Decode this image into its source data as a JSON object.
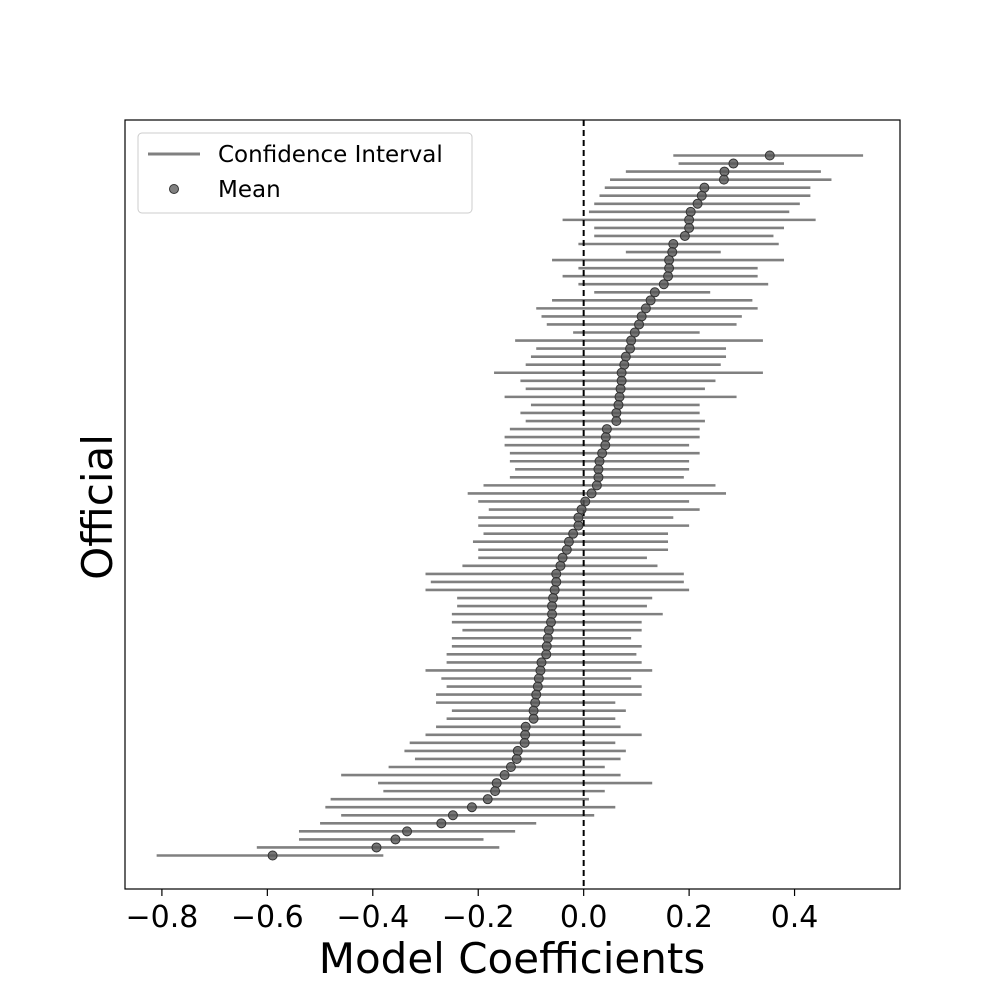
{
  "chart_data": {
    "type": "scatter",
    "xlabel": "Model Coefficients",
    "ylabel": "Official",
    "xlim": [
      -0.87,
      0.6
    ],
    "x_ticks": [
      -0.8,
      -0.6,
      -0.4,
      -0.2,
      0.0,
      0.2,
      0.4
    ],
    "x_tick_labels": [
      "−0.8",
      "−0.6",
      "−0.4",
      "−0.2",
      "0.0",
      "0.2",
      "0.4"
    ],
    "reference_line_x": 0.0,
    "legend": {
      "placement": "top-left",
      "entries": [
        "Confidence Interval",
        "Mean"
      ]
    },
    "colors": {
      "interval": "#808080",
      "mean": "#555555",
      "reference": "#000000"
    },
    "series": [
      {
        "name": "Mean",
        "values": [
          0.353,
          0.284,
          0.267,
          0.266,
          0.229,
          0.224,
          0.216,
          0.203,
          0.2,
          0.2,
          0.192,
          0.17,
          0.168,
          0.162,
          0.162,
          0.16,
          0.152,
          0.135,
          0.127,
          0.118,
          0.11,
          0.105,
          0.097,
          0.09,
          0.088,
          0.08,
          0.077,
          0.072,
          0.072,
          0.07,
          0.068,
          0.066,
          0.062,
          0.062,
          0.044,
          0.042,
          0.041,
          0.035,
          0.03,
          0.028,
          0.028,
          0.025,
          0.015,
          0.003,
          -0.004,
          -0.01,
          -0.01,
          -0.02,
          -0.028,
          -0.032,
          -0.04,
          -0.044,
          -0.052,
          -0.052,
          -0.055,
          -0.058,
          -0.06,
          -0.06,
          -0.062,
          -0.066,
          -0.068,
          -0.07,
          -0.071,
          -0.08,
          -0.082,
          -0.085,
          -0.087,
          -0.09,
          -0.092,
          -0.095,
          -0.095,
          -0.11,
          -0.111,
          -0.112,
          -0.125,
          -0.127,
          -0.138,
          -0.15,
          -0.165,
          -0.168,
          -0.182,
          -0.212,
          -0.248,
          -0.27,
          -0.335,
          -0.357,
          -0.393,
          -0.59
        ],
        "ci_low": [
          0.17,
          0.18,
          0.08,
          0.05,
          0.04,
          0.03,
          0.02,
          0.01,
          -0.04,
          0.02,
          0.02,
          -0.01,
          0.08,
          -0.06,
          -0.01,
          -0.04,
          -0.01,
          0.02,
          -0.06,
          -0.09,
          -0.08,
          -0.07,
          -0.02,
          -0.13,
          -0.09,
          -0.1,
          -0.11,
          -0.17,
          -0.12,
          -0.11,
          -0.15,
          -0.1,
          -0.12,
          -0.11,
          -0.14,
          -0.15,
          -0.15,
          -0.14,
          -0.14,
          -0.13,
          -0.14,
          -0.19,
          -0.22,
          -0.2,
          -0.18,
          -0.2,
          -0.2,
          -0.19,
          -0.21,
          -0.2,
          -0.2,
          -0.23,
          -0.3,
          -0.29,
          -0.3,
          -0.24,
          -0.24,
          -0.25,
          -0.25,
          -0.23,
          -0.25,
          -0.25,
          -0.26,
          -0.26,
          -0.3,
          -0.27,
          -0.26,
          -0.28,
          -0.28,
          -0.25,
          -0.26,
          -0.28,
          -0.3,
          -0.33,
          -0.34,
          -0.32,
          -0.37,
          -0.46,
          -0.39,
          -0.38,
          -0.48,
          -0.49,
          -0.46,
          -0.5,
          -0.54,
          -0.54,
          -0.62,
          -0.81
        ],
        "ci_high": [
          0.53,
          0.38,
          0.45,
          0.47,
          0.43,
          0.43,
          0.41,
          0.39,
          0.44,
          0.38,
          0.36,
          0.37,
          0.26,
          0.38,
          0.33,
          0.33,
          0.35,
          0.24,
          0.32,
          0.33,
          0.3,
          0.29,
          0.22,
          0.34,
          0.27,
          0.27,
          0.26,
          0.34,
          0.25,
          0.23,
          0.29,
          0.22,
          0.22,
          0.23,
          0.22,
          0.22,
          0.2,
          0.22,
          0.2,
          0.2,
          0.19,
          0.25,
          0.27,
          0.2,
          0.22,
          0.17,
          0.2,
          0.16,
          0.16,
          0.16,
          0.12,
          0.14,
          0.19,
          0.19,
          0.2,
          0.13,
          0.12,
          0.15,
          0.11,
          0.11,
          0.09,
          0.11,
          0.1,
          0.11,
          0.13,
          0.09,
          0.11,
          0.11,
          0.06,
          0.08,
          0.06,
          0.07,
          0.11,
          0.06,
          0.08,
          0.07,
          0.04,
          0.07,
          0.13,
          0.04,
          0.01,
          0.06,
          0.02,
          -0.09,
          -0.13,
          -0.19,
          -0.16,
          -0.38
        ]
      }
    ]
  }
}
